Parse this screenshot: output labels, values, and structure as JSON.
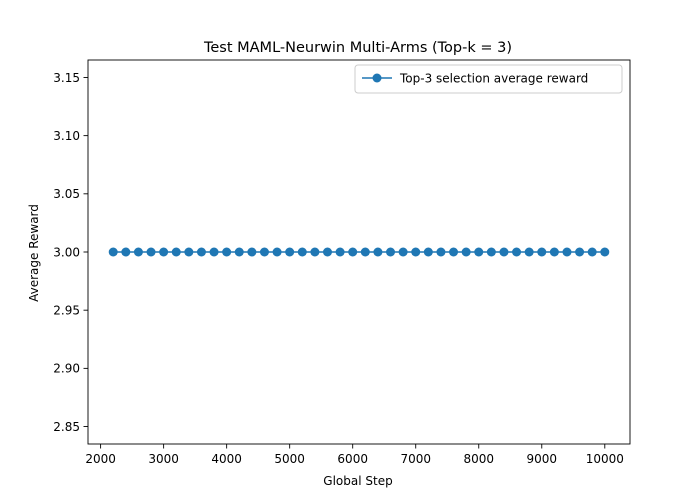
{
  "chart_data": {
    "type": "line",
    "title": "Test MAML-Neurwin Multi-Arms (Top-k = 3)",
    "xlabel": "Global Step",
    "ylabel": "Average Reward",
    "xlim": [
      1800,
      10400
    ],
    "ylim": [
      2.835,
      3.165
    ],
    "xticks": [
      2000,
      3000,
      4000,
      5000,
      6000,
      7000,
      8000,
      9000,
      10000
    ],
    "xtick_labels": [
      "2000",
      "3000",
      "4000",
      "5000",
      "6000",
      "7000",
      "8000",
      "9000",
      "10000"
    ],
    "yticks": [
      2.85,
      2.9,
      2.95,
      3.0,
      3.05,
      3.1,
      3.15
    ],
    "ytick_labels": [
      "2.85",
      "2.90",
      "2.95",
      "3.00",
      "3.05",
      "3.10",
      "3.15"
    ],
    "grid": false,
    "legend": {
      "position": "top-right"
    },
    "series": [
      {
        "name": "Top-3 selection average reward",
        "color": "#1f77b4",
        "marker": "circle",
        "x": [
          2200,
          2400,
          2600,
          2800,
          3000,
          3200,
          3400,
          3600,
          3800,
          4000,
          4200,
          4400,
          4600,
          4800,
          5000,
          5200,
          5400,
          5600,
          5800,
          6000,
          6200,
          6400,
          6600,
          6800,
          7000,
          7200,
          7400,
          7600,
          7800,
          8000,
          8200,
          8400,
          8600,
          8800,
          9000,
          9200,
          9400,
          9600,
          9800,
          10000
        ],
        "y": [
          3.0,
          3.0,
          3.0,
          3.0,
          3.0,
          3.0,
          3.0,
          3.0,
          3.0,
          3.0,
          3.0,
          3.0,
          3.0,
          3.0,
          3.0,
          3.0,
          3.0,
          3.0,
          3.0,
          3.0,
          3.0,
          3.0,
          3.0,
          3.0,
          3.0,
          3.0,
          3.0,
          3.0,
          3.0,
          3.0,
          3.0,
          3.0,
          3.0,
          3.0,
          3.0,
          3.0,
          3.0,
          3.0,
          3.0,
          3.0
        ]
      }
    ]
  }
}
